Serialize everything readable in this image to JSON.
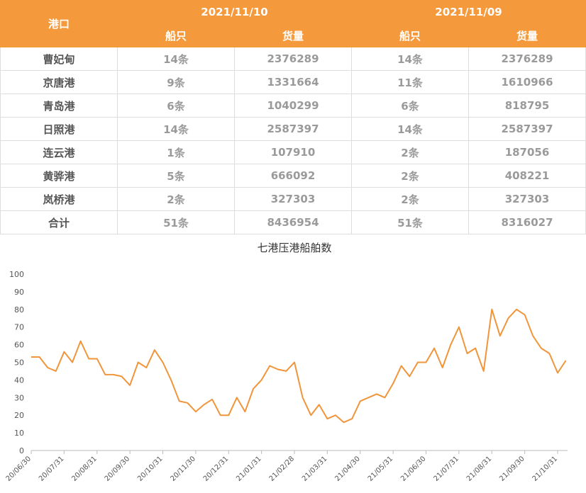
{
  "table": {
    "header": {
      "port": "港口",
      "dates": [
        "2021/11/10",
        "2021/11/09"
      ],
      "columns": [
        "船只",
        "货量",
        "船只",
        "货量"
      ]
    },
    "rows": [
      [
        "曹妃甸",
        "14条",
        "2376289",
        "14条",
        "2376289"
      ],
      [
        "京唐港",
        "9条",
        "1331664",
        "11条",
        "1610966"
      ],
      [
        "青岛港",
        "6条",
        "1040299",
        "6条",
        "818795"
      ],
      [
        "日照港",
        "14条",
        "2587397",
        "14条",
        "2587397"
      ],
      [
        "连云港",
        "1条",
        "107910",
        "2条",
        "187056"
      ],
      [
        "黄骅港",
        "5条",
        "666092",
        "2条",
        "408221"
      ],
      [
        "岚桥港",
        "2条",
        "327303",
        "2条",
        "327303"
      ],
      [
        "合计",
        "51条",
        "8436954",
        "51条",
        "8316027"
      ]
    ]
  },
  "chart_data": {
    "type": "line",
    "title": "七港压港船舶数",
    "categories": [
      "20/06/30",
      null,
      null,
      null,
      "20/07/31",
      null,
      null,
      null,
      "20/08/31",
      null,
      null,
      null,
      "20/09/30",
      null,
      null,
      null,
      "20/10/31",
      null,
      null,
      null,
      "20/11/30",
      null,
      null,
      null,
      "20/12/31",
      null,
      null,
      null,
      "21/01/31",
      null,
      null,
      null,
      "21/02/28",
      null,
      null,
      null,
      "21/03/31",
      null,
      null,
      null,
      "21/04/30",
      null,
      null,
      null,
      "21/05/31",
      null,
      null,
      null,
      "21/06/30",
      null,
      null,
      null,
      "21/07/31",
      null,
      null,
      null,
      "21/08/31",
      null,
      null,
      null,
      "21/09/30",
      null,
      null,
      null,
      "21/10/31",
      null
    ],
    "series": [
      {
        "color": "#f0953a",
        "values": [
          53,
          53,
          47,
          45,
          56,
          50,
          62,
          52,
          52,
          43,
          43,
          42,
          37,
          50,
          47,
          57,
          50,
          40,
          28,
          27,
          22,
          26,
          29,
          20,
          20,
          30,
          22,
          35,
          40,
          48,
          46,
          45,
          50,
          30,
          20,
          26,
          18,
          20,
          16,
          18,
          28,
          30,
          32,
          30,
          38,
          48,
          42,
          50,
          50,
          58,
          47,
          60,
          70,
          55,
          58,
          45,
          80,
          65,
          75,
          80,
          77,
          65,
          58,
          55,
          44,
          51
        ]
      }
    ],
    "ylim": [
      0,
      100
    ],
    "yticks": [
      0,
      10,
      20,
      30,
      40,
      50,
      60,
      70,
      80,
      90,
      100
    ]
  }
}
